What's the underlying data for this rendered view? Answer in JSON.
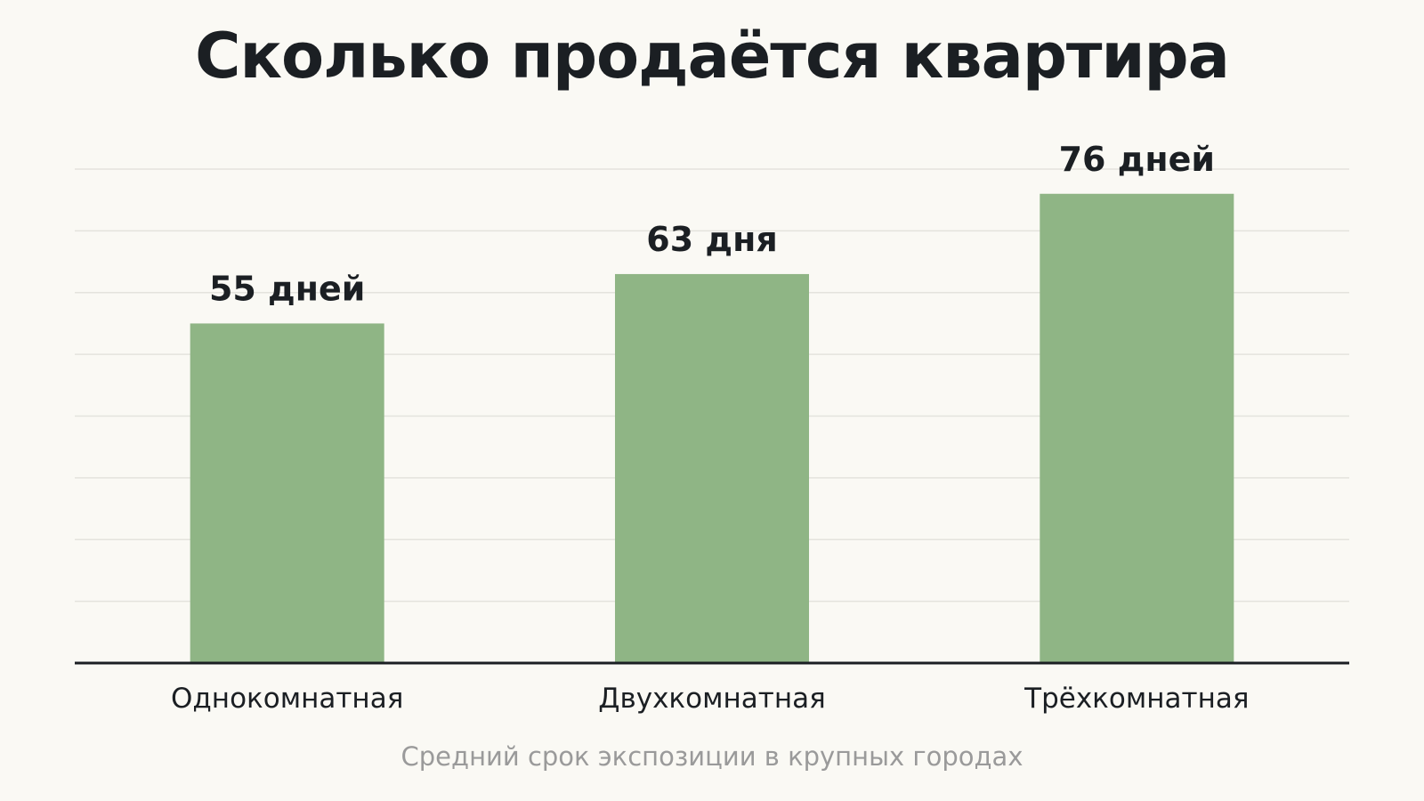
{
  "chart_data": {
    "type": "bar",
    "title": "Сколько продаётся квартира",
    "subtitle": "Средний срок экспозиции в крупных городах",
    "categories": [
      "Однокомнатная",
      "Двухкомнатная",
      "Трёхкомнатная"
    ],
    "values": [
      55,
      63,
      76
    ],
    "data_labels": [
      "55 дней",
      "63 дня",
      "76 дней"
    ],
    "unit": "дней",
    "xlabel": "",
    "ylabel": "",
    "ylim": [
      0,
      80
    ],
    "grid": true,
    "legend": "none",
    "colors": {
      "bar": "#8fb585",
      "grid": "#e4e3dd",
      "axis": "#1b1f23",
      "text": "#1b1f23",
      "subtitle": "#9a9a9a",
      "background": "#faf9f4"
    }
  }
}
